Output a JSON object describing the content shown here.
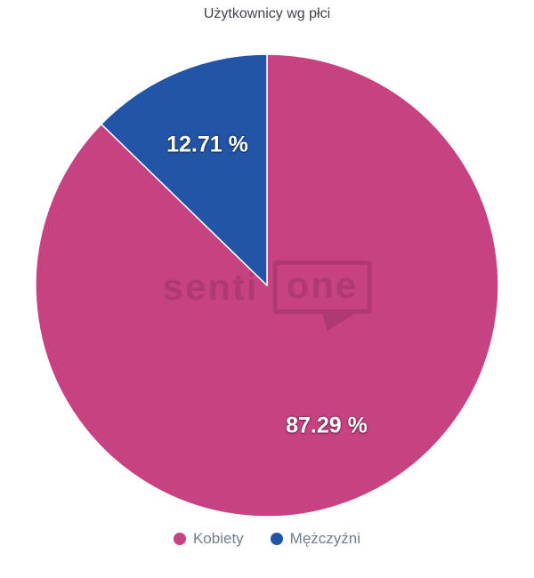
{
  "title": "Użytkownicy wg płci",
  "watermark": {
    "text_left": "senti",
    "text_bubble": "one"
  },
  "colors": {
    "kobiety_pink": "#C64281",
    "mezczyzni_blue": "#2355A6",
    "title_text": "#3F434A",
    "legend_text": "#6F7E8C",
    "data_label_text": "#FFFFFF",
    "background": "#FFFFFF"
  },
  "chart_data": {
    "type": "pie",
    "title": "Użytkownicy wg płci",
    "legend_position": "bottom",
    "start_angle_deg": 0,
    "direction": "clockwise",
    "units": "%",
    "points": [
      {
        "name": "Kobiety",
        "value": 87.29,
        "label": "87.29 %",
        "color": "#C64281"
      },
      {
        "name": "Mężczyźni",
        "value": 12.71,
        "label": "12.71 %",
        "color": "#2355A6"
      }
    ]
  }
}
